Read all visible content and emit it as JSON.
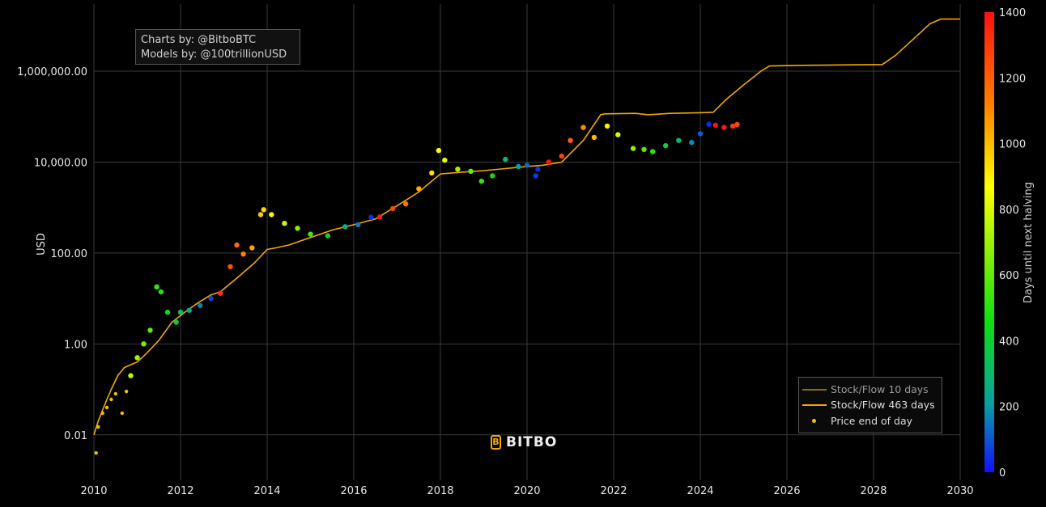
{
  "credits": {
    "line1": "Charts by: @BitboBTC",
    "line2": "Models by: @100trillionUSD"
  },
  "logo": {
    "text": "BITBO"
  },
  "legend": {
    "items": [
      {
        "label": "Stock/Flow 10 days",
        "color": "#8a6a1e",
        "kind": "line",
        "dimmed": true
      },
      {
        "label": "Stock/Flow 463 days",
        "color": "#f2a900",
        "kind": "line",
        "dimmed": false
      },
      {
        "label": "Price end of day",
        "color": "#f2c200",
        "kind": "dot",
        "dimmed": false
      }
    ],
    "position": "bottom-right"
  },
  "chart_data": {
    "type": "scatter",
    "title": "",
    "xlabel": "",
    "ylabel": "USD",
    "y_scale": "log",
    "x_ticks": [
      "2010",
      "2012",
      "2014",
      "2016",
      "2018",
      "2020",
      "2022",
      "2024",
      "2026",
      "2028",
      "2030"
    ],
    "xlim": [
      2010,
      2030
    ],
    "y_ticks": [
      0.01,
      1,
      100,
      10000,
      1000000
    ],
    "y_tick_labels": [
      "0.01",
      "1.00",
      "100.00",
      "10,000.00",
      "1,000,000.00"
    ],
    "ylim": [
      0.001,
      30000000
    ],
    "grid": true,
    "colorbar": {
      "title": "Days until next halving",
      "range": [
        0,
        1400
      ],
      "ticks": [
        0,
        200,
        400,
        600,
        800,
        1000,
        1200,
        1400
      ],
      "colors": [
        "#1010ff",
        "#0aa0a0",
        "#10e010",
        "#ffff00",
        "#ff7f00",
        "#ff1010"
      ]
    },
    "series": [
      {
        "name": "Stock/Flow 463 days",
        "color": "#f2a900",
        "x": [
          2010.0,
          2010.1,
          2010.2,
          2010.3,
          2010.4,
          2010.55,
          2010.7,
          2010.85,
          2011.0,
          2011.2,
          2011.5,
          2011.8,
          2012.1,
          2012.4,
          2012.7,
          2012.92,
          2013.3,
          2013.7,
          2014.0,
          2014.2,
          2014.5,
          2015.0,
          2015.5,
          2016.0,
          2016.5,
          2017.0,
          2017.5,
          2018.0,
          2018.5,
          2019.0,
          2019.5,
          2020.0,
          2020.35,
          2020.8,
          2021.3,
          2021.7,
          2021.8,
          2022.5,
          2022.8,
          2023.3,
          2024.0,
          2024.3,
          2024.6,
          2025.0,
          2025.4,
          2025.6,
          2026.5,
          2027.5,
          2028.2,
          2028.5,
          2029.0,
          2029.3,
          2029.55,
          2030.0
        ],
        "values": [
          0.01,
          0.02,
          0.035,
          0.06,
          0.1,
          0.2,
          0.3,
          0.35,
          0.4,
          0.6,
          1.2,
          3,
          5,
          8,
          12,
          14,
          28,
          60,
          120,
          130,
          150,
          220,
          320,
          420,
          560,
          1100,
          2200,
          5500,
          6000,
          6500,
          7200,
          8000,
          8500,
          10000,
          30000,
          110000,
          115000,
          118000,
          110000,
          118000,
          122000,
          125000,
          240000,
          500000,
          1000000,
          1300000,
          1350000,
          1380000,
          1400000,
          2200000,
          6000000,
          11000000,
          14000000,
          14000000
        ]
      },
      {
        "name": "Price end of day",
        "color": "#f2c200",
        "x": [
          2010.05,
          2010.1,
          2010.2,
          2010.3,
          2010.4,
          2010.5,
          2010.65,
          2010.75,
          2010.85,
          2011.0,
          2011.15,
          2011.3,
          2011.45,
          2011.55,
          2011.7,
          2011.9,
          2012.0,
          2012.2,
          2012.45,
          2012.7,
          2012.92,
          2013.15,
          2013.3,
          2013.45,
          2013.65,
          2013.85,
          2013.92,
          2014.1,
          2014.4,
          2014.7,
          2015.0,
          2015.4,
          2015.8,
          2016.1,
          2016.4,
          2016.6,
          2016.9,
          2017.2,
          2017.5,
          2017.8,
          2017.96,
          2018.1,
          2018.4,
          2018.7,
          2018.95,
          2019.2,
          2019.5,
          2019.8,
          2020.0,
          2020.2,
          2020.25,
          2020.5,
          2020.8,
          2021.0,
          2021.3,
          2021.55,
          2021.85,
          2022.1,
          2022.45,
          2022.7,
          2022.9,
          2023.2,
          2023.5,
          2023.8,
          2024.0,
          2024.2,
          2024.35,
          2024.55,
          2024.75,
          2024.85
        ],
        "values": [
          0.004,
          0.015,
          0.03,
          0.04,
          0.06,
          0.08,
          0.03,
          0.09,
          0.2,
          0.5,
          1.0,
          2.0,
          18,
          14,
          5,
          3,
          5,
          5.5,
          7,
          10,
          13,
          50,
          150,
          95,
          130,
          700,
          900,
          700,
          450,
          350,
          260,
          240,
          380,
          420,
          610,
          620,
          950,
          1200,
          2600,
          5800,
          18000,
          11000,
          7000,
          6300,
          3800,
          5000,
          11500,
          8000,
          8500,
          5000,
          7000,
          10000,
          13500,
          30000,
          58000,
          35000,
          62000,
          40000,
          20000,
          19000,
          17000,
          23000,
          30000,
          27000,
          42000,
          68000,
          65000,
          58000,
          62000,
          67000
        ]
      }
    ]
  }
}
